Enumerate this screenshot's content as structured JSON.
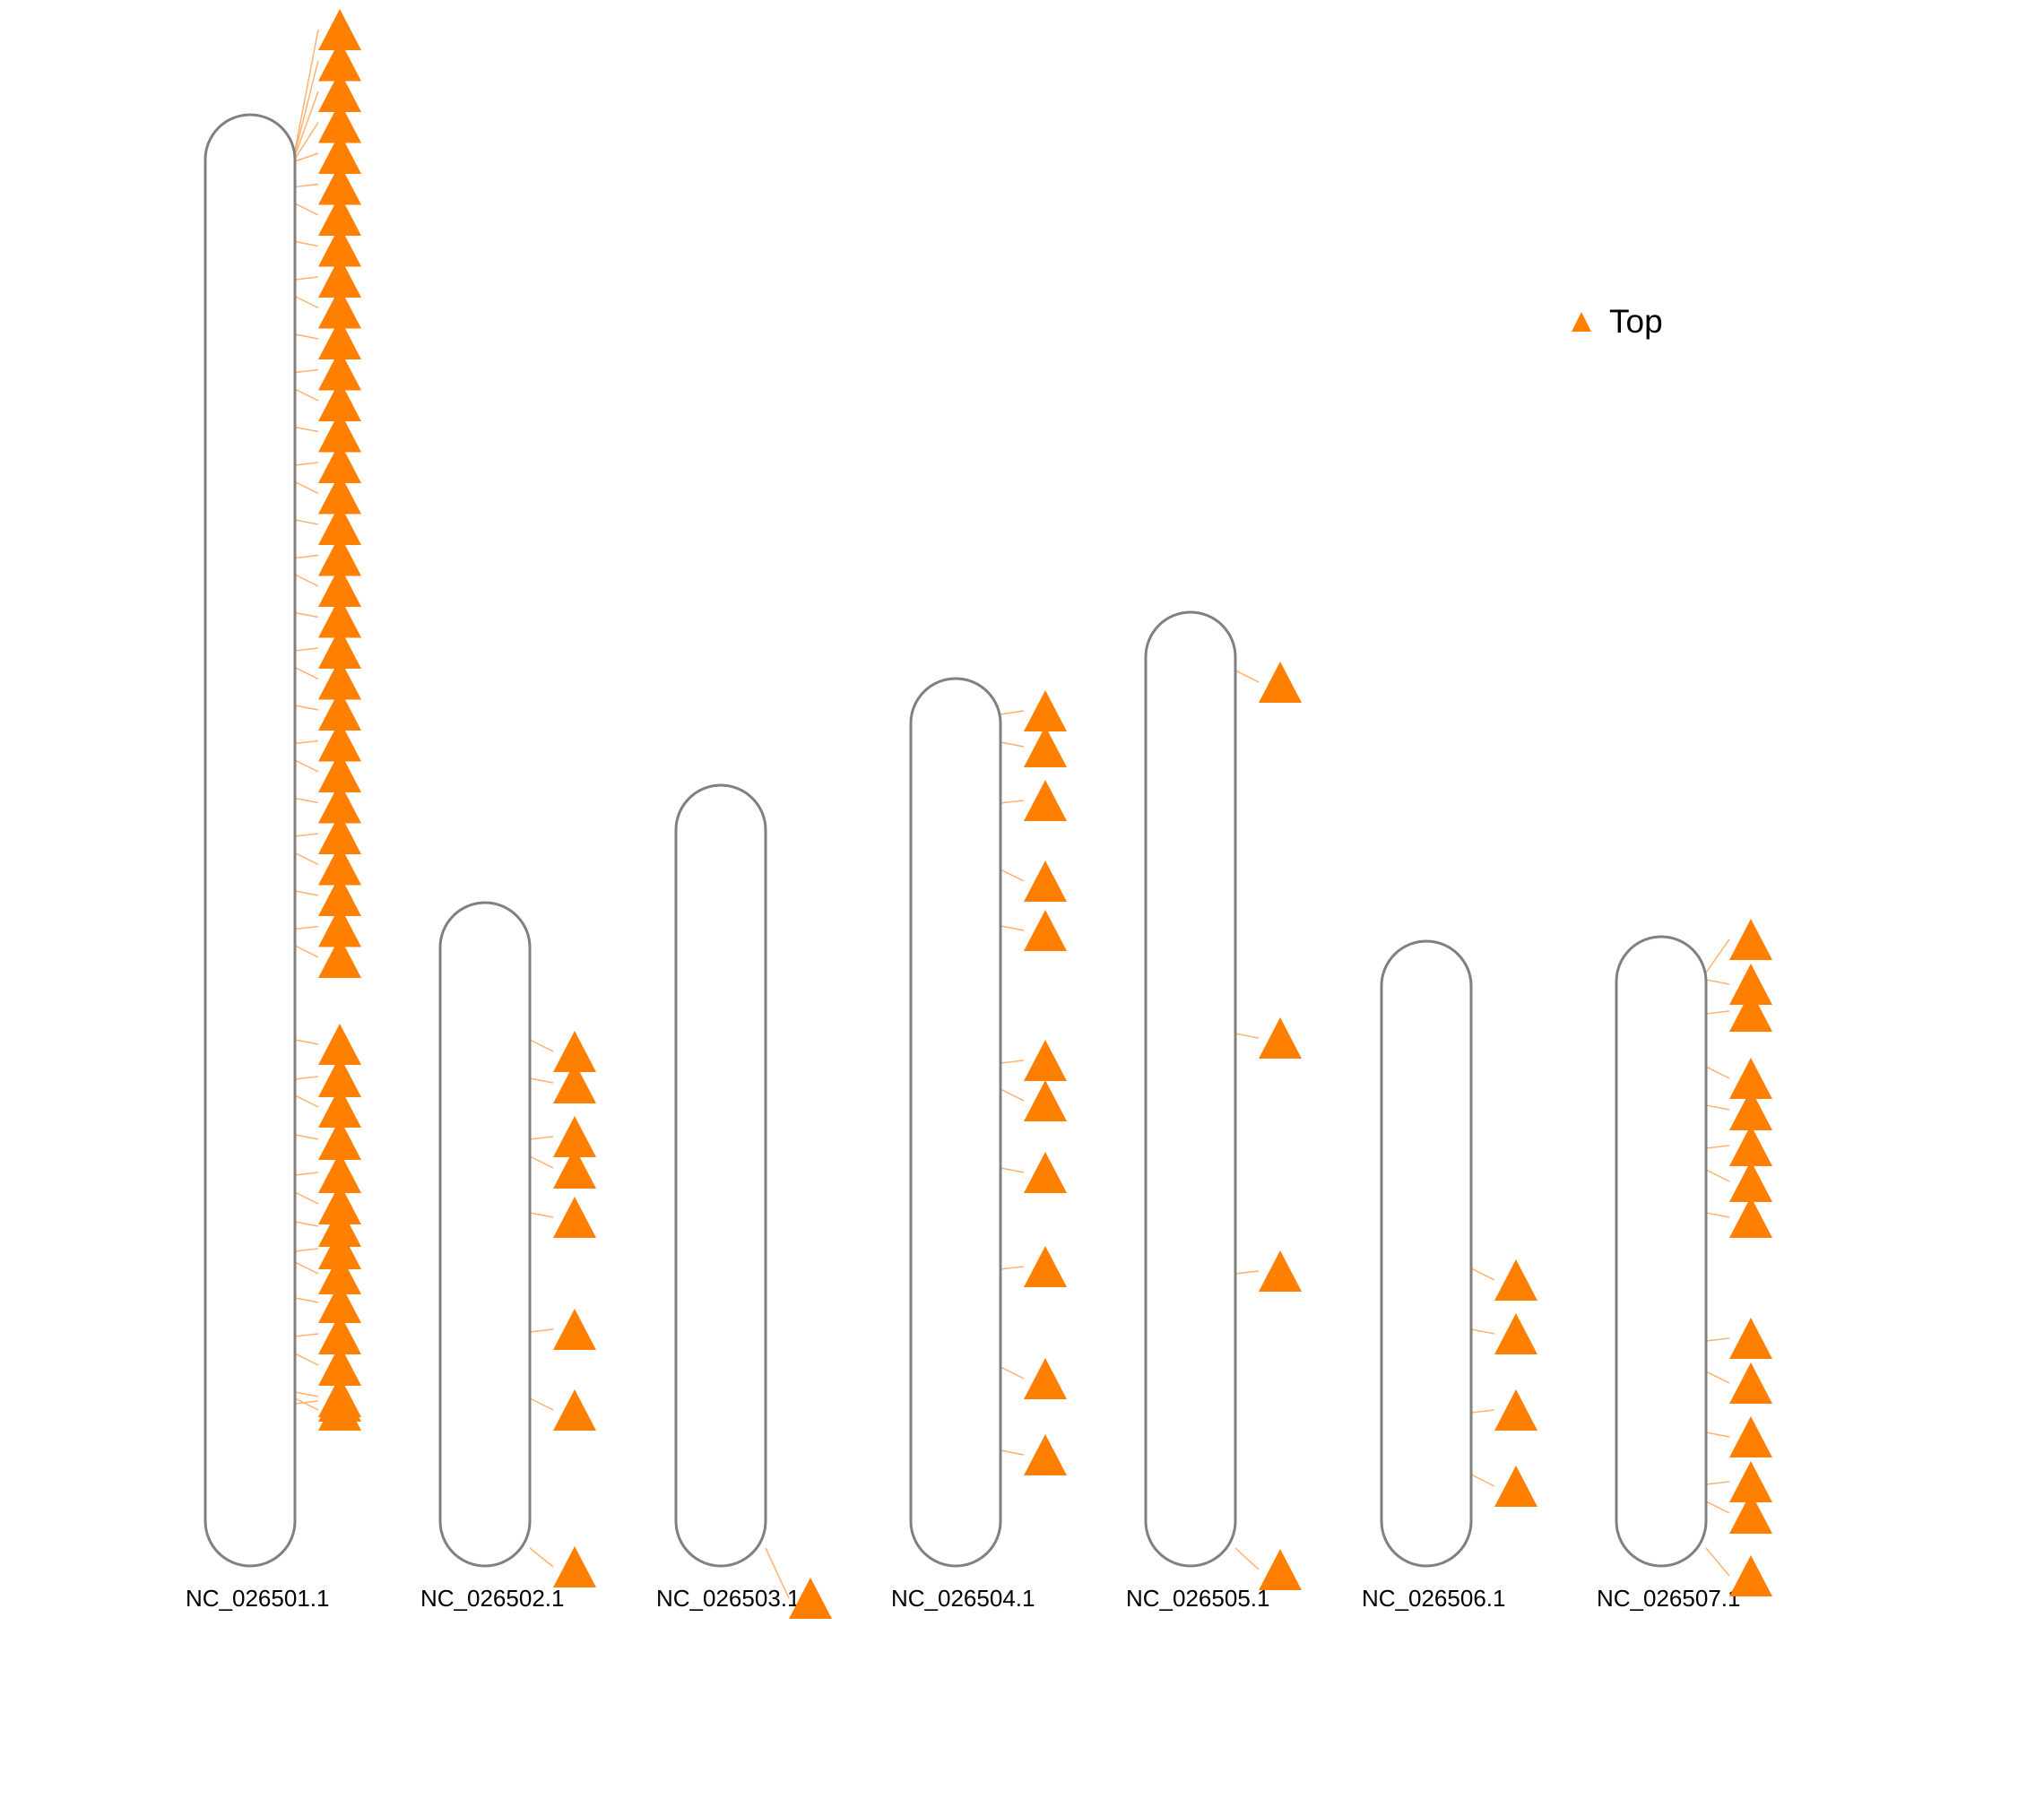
{
  "colors": {
    "marker": "#ff7f00",
    "connector": "#ffb170",
    "chromosome_outline": "#808080",
    "background": "#ffffff"
  },
  "legend": {
    "label": "Top",
    "marker_shape": "triangle"
  },
  "chromosomes": [
    {
      "name": "NC_026501.1",
      "markers": 46
    },
    {
      "name": "NC_026502.1",
      "markers": 8
    },
    {
      "name": "NC_026503.1",
      "markers": 1
    },
    {
      "name": "NC_026504.1",
      "markers": 11
    },
    {
      "name": "NC_026505.1",
      "markers": 4
    },
    {
      "name": "NC_026506.1",
      "markers": 4
    },
    {
      "name": "NC_026507.1",
      "markers": 14
    }
  ]
}
